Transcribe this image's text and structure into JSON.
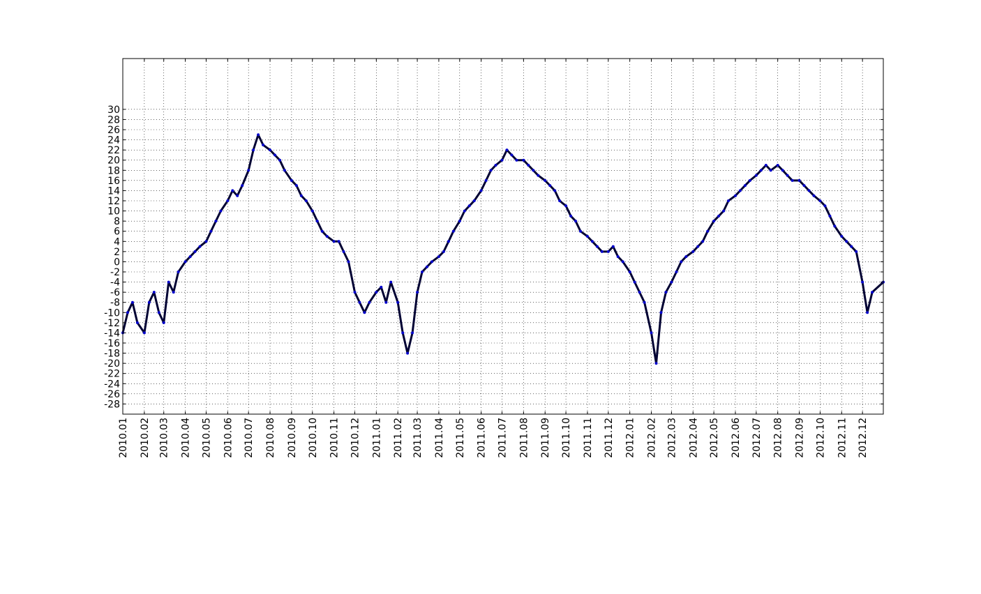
{
  "chart_data": {
    "type": "line",
    "title": "",
    "xlabel": "",
    "ylabel": "",
    "x_tick_labels": [
      "2010.01",
      "2010.02",
      "2010.03",
      "2010.04",
      "2010.05",
      "2010.06",
      "2010.07",
      "2010.08",
      "2010.09",
      "2010.10",
      "2010.11",
      "2010.12",
      "2011.01",
      "2011.02",
      "2011.03",
      "2011.04",
      "2011.05",
      "2011.06",
      "2011.07",
      "2011.08",
      "2011.09",
      "2011.10",
      "2011.11",
      "2011.12",
      "2012.01",
      "2012.02",
      "2012.03",
      "2012.04",
      "2012.05",
      "2012.06",
      "2012.07",
      "2012.08",
      "2012.09",
      "2012.10",
      "2012.11",
      "2012.12"
    ],
    "y_ticks": [
      30,
      28,
      26,
      24,
      22,
      20,
      18,
      16,
      14,
      12,
      10,
      8,
      6,
      4,
      2,
      0,
      -2,
      -4,
      -6,
      -8,
      -10,
      -12,
      -14,
      -16,
      -18,
      -20,
      -22,
      -24,
      -26,
      -28
    ],
    "xlim": [
      "2010-01-01",
      "2012-12-31"
    ],
    "ylim": [
      -30,
      40
    ],
    "grid": true,
    "line_color": "#000033",
    "marker_color": "#0000cc",
    "series": [
      {
        "values": [
          [
            "2010-01-01",
            -14
          ],
          [
            "2010-01-08",
            -10
          ],
          [
            "2010-01-15",
            -8
          ],
          [
            "2010-01-22",
            -12
          ],
          [
            "2010-02-01",
            -14
          ],
          [
            "2010-02-08",
            -8
          ],
          [
            "2010-02-15",
            -6
          ],
          [
            "2010-02-22",
            -10
          ],
          [
            "2010-03-01",
            -12
          ],
          [
            "2010-03-08",
            -4
          ],
          [
            "2010-03-15",
            -6
          ],
          [
            "2010-03-22",
            -2
          ],
          [
            "2010-04-01",
            0
          ],
          [
            "2010-04-08",
            1
          ],
          [
            "2010-04-15",
            2
          ],
          [
            "2010-04-22",
            3
          ],
          [
            "2010-05-01",
            4
          ],
          [
            "2010-05-08",
            6
          ],
          [
            "2010-05-15",
            8
          ],
          [
            "2010-05-22",
            10
          ],
          [
            "2010-06-01",
            12
          ],
          [
            "2010-06-08",
            14
          ],
          [
            "2010-06-15",
            13
          ],
          [
            "2010-06-22",
            15
          ],
          [
            "2010-07-01",
            18
          ],
          [
            "2010-07-08",
            22
          ],
          [
            "2010-07-15",
            25
          ],
          [
            "2010-07-22",
            23
          ],
          [
            "2010-08-01",
            22
          ],
          [
            "2010-08-08",
            21
          ],
          [
            "2010-08-15",
            20
          ],
          [
            "2010-08-22",
            18
          ],
          [
            "2010-09-01",
            16
          ],
          [
            "2010-09-08",
            15
          ],
          [
            "2010-09-15",
            13
          ],
          [
            "2010-09-22",
            12
          ],
          [
            "2010-10-01",
            10
          ],
          [
            "2010-10-08",
            8
          ],
          [
            "2010-10-15",
            6
          ],
          [
            "2010-10-22",
            5
          ],
          [
            "2010-11-01",
            4
          ],
          [
            "2010-11-08",
            4
          ],
          [
            "2010-11-15",
            2
          ],
          [
            "2010-11-22",
            0
          ],
          [
            "2010-12-01",
            -6
          ],
          [
            "2010-12-08",
            -8
          ],
          [
            "2010-12-15",
            -10
          ],
          [
            "2010-12-22",
            -8
          ],
          [
            "2011-01-01",
            -6
          ],
          [
            "2011-01-08",
            -5
          ],
          [
            "2011-01-15",
            -8
          ],
          [
            "2011-01-22",
            -4
          ],
          [
            "2011-02-01",
            -8
          ],
          [
            "2011-02-08",
            -14
          ],
          [
            "2011-02-15",
            -18
          ],
          [
            "2011-02-22",
            -14
          ],
          [
            "2011-03-01",
            -6
          ],
          [
            "2011-03-08",
            -2
          ],
          [
            "2011-03-15",
            -1
          ],
          [
            "2011-03-22",
            0
          ],
          [
            "2011-04-01",
            1
          ],
          [
            "2011-04-08",
            2
          ],
          [
            "2011-04-15",
            4
          ],
          [
            "2011-04-22",
            6
          ],
          [
            "2011-05-01",
            8
          ],
          [
            "2011-05-08",
            10
          ],
          [
            "2011-05-15",
            11
          ],
          [
            "2011-05-22",
            12
          ],
          [
            "2011-06-01",
            14
          ],
          [
            "2011-06-08",
            16
          ],
          [
            "2011-06-15",
            18
          ],
          [
            "2011-06-22",
            19
          ],
          [
            "2011-07-01",
            20
          ],
          [
            "2011-07-08",
            22
          ],
          [
            "2011-07-15",
            21
          ],
          [
            "2011-07-22",
            20
          ],
          [
            "2011-08-01",
            20
          ],
          [
            "2011-08-08",
            19
          ],
          [
            "2011-08-15",
            18
          ],
          [
            "2011-08-22",
            17
          ],
          [
            "2011-09-01",
            16
          ],
          [
            "2011-09-08",
            15
          ],
          [
            "2011-09-15",
            14
          ],
          [
            "2011-09-22",
            12
          ],
          [
            "2011-10-01",
            11
          ],
          [
            "2011-10-08",
            9
          ],
          [
            "2011-10-15",
            8
          ],
          [
            "2011-10-22",
            6
          ],
          [
            "2011-11-01",
            5
          ],
          [
            "2011-11-08",
            4
          ],
          [
            "2011-11-15",
            3
          ],
          [
            "2011-11-22",
            2
          ],
          [
            "2011-12-01",
            2
          ],
          [
            "2011-12-08",
            3
          ],
          [
            "2011-12-15",
            1
          ],
          [
            "2011-12-22",
            0
          ],
          [
            "2012-01-01",
            -2
          ],
          [
            "2012-01-08",
            -4
          ],
          [
            "2012-01-15",
            -6
          ],
          [
            "2012-01-22",
            -8
          ],
          [
            "2012-02-01",
            -14
          ],
          [
            "2012-02-08",
            -20
          ],
          [
            "2012-02-15",
            -10
          ],
          [
            "2012-02-22",
            -6
          ],
          [
            "2012-03-01",
            -4
          ],
          [
            "2012-03-08",
            -2
          ],
          [
            "2012-03-15",
            0
          ],
          [
            "2012-03-22",
            1
          ],
          [
            "2012-04-01",
            2
          ],
          [
            "2012-04-08",
            3
          ],
          [
            "2012-04-15",
            4
          ],
          [
            "2012-04-22",
            6
          ],
          [
            "2012-05-01",
            8
          ],
          [
            "2012-05-08",
            9
          ],
          [
            "2012-05-15",
            10
          ],
          [
            "2012-05-22",
            12
          ],
          [
            "2012-06-01",
            13
          ],
          [
            "2012-06-08",
            14
          ],
          [
            "2012-06-15",
            15
          ],
          [
            "2012-06-22",
            16
          ],
          [
            "2012-07-01",
            17
          ],
          [
            "2012-07-08",
            18
          ],
          [
            "2012-07-15",
            19
          ],
          [
            "2012-07-22",
            18
          ],
          [
            "2012-08-01",
            19
          ],
          [
            "2012-08-08",
            18
          ],
          [
            "2012-08-15",
            17
          ],
          [
            "2012-08-22",
            16
          ],
          [
            "2012-09-01",
            16
          ],
          [
            "2012-09-08",
            15
          ],
          [
            "2012-09-15",
            14
          ],
          [
            "2012-09-22",
            13
          ],
          [
            "2012-10-01",
            12
          ],
          [
            "2012-10-08",
            11
          ],
          [
            "2012-10-15",
            9
          ],
          [
            "2012-10-22",
            7
          ],
          [
            "2012-11-01",
            5
          ],
          [
            "2012-11-08",
            4
          ],
          [
            "2012-11-15",
            3
          ],
          [
            "2012-11-22",
            2
          ],
          [
            "2012-12-01",
            -4
          ],
          [
            "2012-12-08",
            -10
          ],
          [
            "2012-12-15",
            -6
          ],
          [
            "2012-12-31",
            -4
          ]
        ]
      }
    ]
  }
}
